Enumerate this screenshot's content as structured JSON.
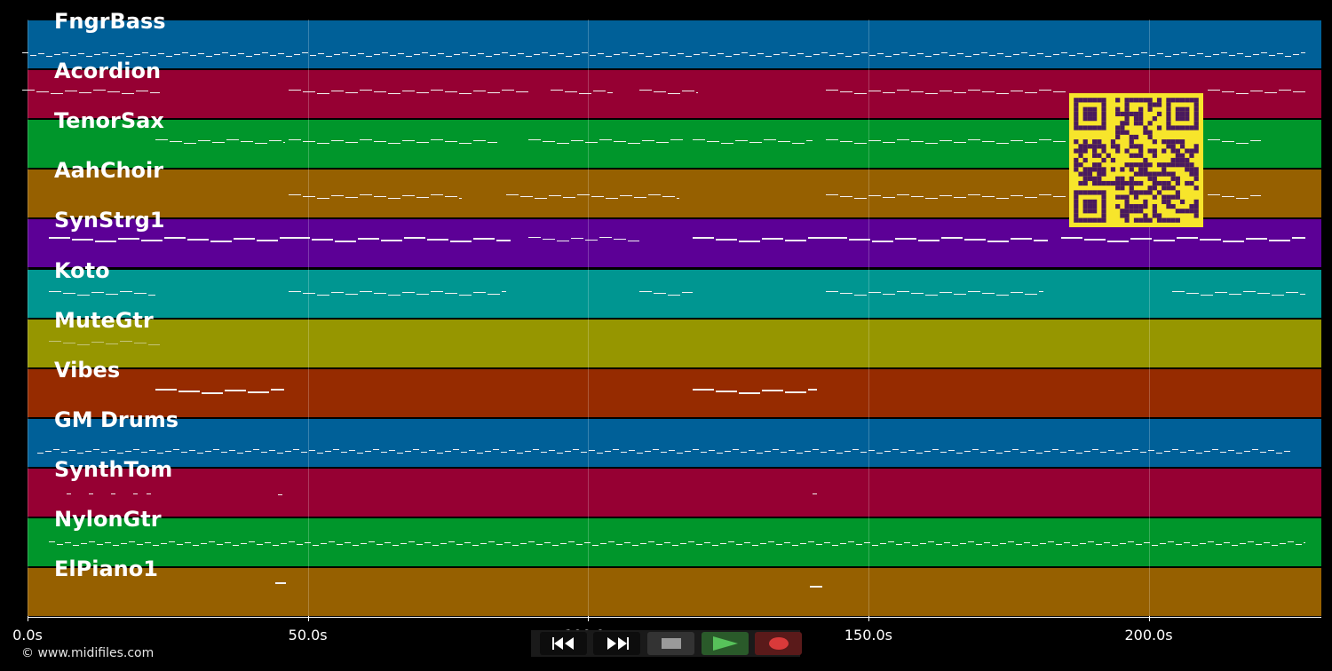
{
  "tracks": [
    {
      "name": "FngrBass",
      "color": "#006098"
    },
    {
      "name": "Acordion",
      "color": "#960033"
    },
    {
      "name": "TenorSax",
      "color": "#00962b"
    },
    {
      "name": "AahChoir",
      "color": "#966000"
    },
    {
      "name": "SynStrg1",
      "color": "#5c0096"
    },
    {
      "name": "Koto",
      "color": "#009691"
    },
    {
      "name": "MuteGtr",
      "color": "#969600"
    },
    {
      "name": "Vibes",
      "color": "#962b00"
    },
    {
      "name": "GM Drums",
      "color": "#006098"
    },
    {
      "name": "SynthTom",
      "color": "#960033"
    },
    {
      "name": "NylonGtr",
      "color": "#00962b"
    },
    {
      "name": "ElPiano1",
      "color": "#966000"
    }
  ],
  "timeline": {
    "tick_labels": [
      "0.0s",
      "50.0s",
      "100.0s",
      "150.0s",
      "200.0s"
    ],
    "tick_seconds": [
      0,
      50,
      100,
      150,
      200
    ],
    "max_seconds": 230.8
  },
  "transport": {
    "rewind_icon": "rewind-icon",
    "fast_forward_icon": "fast-forward-icon",
    "stop_icon": "stop-icon",
    "play_icon": "play-icon",
    "record_icon": "record-icon",
    "play_color": "#57c25a",
    "record_color": "#d93a3a"
  },
  "qr": {
    "color_fg": "#4a1a5e",
    "color_bg": "#f7e52b"
  },
  "footer": {
    "copyright": "© www.midifiles.com"
  }
}
